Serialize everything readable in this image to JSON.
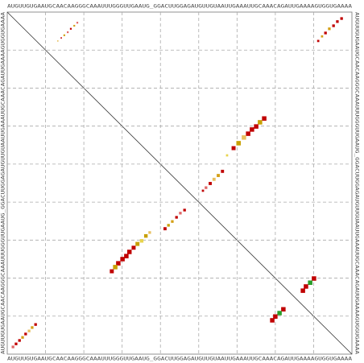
{
  "chart_data": {
    "type": "dotplot",
    "sequence": "AUGUUGUGAAUGCAACAAGGGCAAAUUUGGGUUGAAUG_GGACUUGGAGAUGUUGUAAUUGAAAUUGCAAACAGAUUGAAAAGUGGUGAAAA",
    "xlim": [
      0,
      90
    ],
    "ylim": [
      0,
      90
    ],
    "xticks": [
      10,
      20,
      30,
      40,
      50,
      60,
      70,
      80
    ],
    "yticks": [
      10,
      20,
      30,
      40,
      50,
      60,
      70,
      80
    ],
    "grid": true,
    "x": [
      18.3,
      17.5,
      16.6,
      15.8,
      14.9,
      14.1,
      13.2,
      7.4,
      6.5,
      5.7,
      4.8,
      4.0,
      3.2,
      2.3,
      1.5,
      87.3,
      86.2,
      85.2,
      84.1,
      83.1,
      82.2,
      81.2,
      67.1,
      66.0,
      65.0,
      63.9,
      62.9,
      61.8,
      60.4,
      59.1,
      57.4,
      56.2,
      55.1,
      54.0,
      53.0,
      51.9,
      51.1,
      46.3,
      45.2,
      44.2,
      43.1,
      42.1,
      41.2,
      37.2,
      36.2,
      35.1,
      34.0,
      33.0,
      31.9,
      31.1,
      30.1,
      29.0,
      28.2,
      27.3,
      80.1,
      79.1,
      78.0,
      77.2,
      72.1,
      71.1,
      70.0,
      69.2
    ],
    "values": [
      2.8,
      3.6,
      4.4,
      5.3,
      6.1,
      6.8,
      7.6,
      82.2,
      83.0,
      83.9,
      84.7,
      85.6,
      86.4,
      87.3,
      88.1,
      1.7,
      2.5,
      3.6,
      4.4,
      5.5,
      6.4,
      7.6,
      28.0,
      29.0,
      30.1,
      30.9,
      32.0,
      33.0,
      34.5,
      35.8,
      37.7,
      41.9,
      43.0,
      44.0,
      45.1,
      46.2,
      47.0,
      52.1,
      52.9,
      54.0,
      55.1,
      56.1,
      57.0,
      58.0,
      58.9,
      60.2,
      61.0,
      62.0,
      63.1,
      64.2,
      65.0,
      66.1,
      67.1,
      68.2,
      70.1,
      71.2,
      72.2,
      73.3,
      78.2,
      79.2,
      80.1,
      81.1
    ],
    "sizes": [
      0.4,
      0.4,
      0.4,
      0.4,
      0.4,
      0.3,
      0.3,
      0.6,
      0.6,
      0.6,
      0.6,
      0.6,
      0.6,
      0.6,
      0.6,
      0.6,
      0.6,
      0.6,
      0.6,
      0.6,
      0.5,
      0.5,
      1,
      1,
      1,
      1,
      1,
      1,
      1,
      0.9,
      0.5,
      0.7,
      0.7,
      0.7,
      0.7,
      0.6,
      0.5,
      0.6,
      0.6,
      0.6,
      0.6,
      0.6,
      0.7,
      0.6,
      0.8,
      0.8,
      0.9,
      0.9,
      1,
      1,
      1,
      1,
      1,
      0.9,
      1,
      1,
      1,
      1,
      1,
      1,
      1,
      1
    ],
    "colors": [
      "#e06666",
      "#d4a017",
      "#c00000",
      "#e06666",
      "#d4a017",
      "#c00000",
      "#e8c060",
      "#c00000",
      "#d4a017",
      "#e8c060",
      "#c00000",
      "#d4a017",
      "#c00000",
      "#c00000",
      "#e06666",
      "#c00000",
      "#c00000",
      "#c00000",
      "#d4a017",
      "#c00000",
      "#d4a017",
      "#c00000",
      "#c00000",
      "#c8a000",
      "#c00000",
      "#c00000",
      "#c00000",
      "#e8c060",
      "#c8a000",
      "#c00000",
      "#e8d44d",
      "#c00000",
      "#d4a017",
      "#e8c060",
      "#c00000",
      "#e06666",
      "#c00000",
      "#c00000",
      "#e06666",
      "#c00000",
      "#d4a017",
      "#c8a000",
      "#c00000",
      "#e8c060",
      "#c8a000",
      "#e8d44d",
      "#c8a000",
      "#c00000",
      "#c00000",
      "#c00000",
      "#c00000",
      "#c00000",
      "#c8a000",
      "#c00000",
      "#c00000",
      "#2a9d2a",
      "#c00000",
      "#c00000",
      "#c00000",
      "#2a9d2a",
      "#c00000",
      "#c00000"
    ]
  }
}
